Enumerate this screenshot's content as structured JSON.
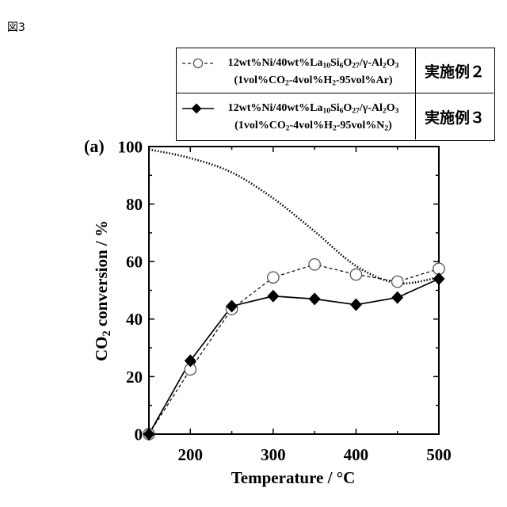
{
  "figure_label": "図3",
  "chart_data": {
    "type": "line",
    "panel_label": "(a)",
    "xlabel": "Temperature / °C",
    "ylabel": [
      {
        "text": "CO"
      },
      {
        "text": "2",
        "sub": true
      },
      {
        "text": " conversion / %"
      }
    ],
    "xlim": [
      150,
      500
    ],
    "ylim": [
      0,
      100
    ],
    "x_ticks": [
      200,
      300,
      400,
      500
    ],
    "y_ticks": [
      0,
      20,
      40,
      60,
      80,
      100
    ],
    "grid": false,
    "legend_placement": "top, above the plot",
    "x": [
      150,
      200,
      250,
      300,
      350,
      400,
      450,
      500
    ],
    "series": [
      {
        "name": "実施例２",
        "label_lines": [
          [
            {
              "text": "12wt%Ni/40wt%La"
            },
            {
              "text": "10",
              "sub": true
            },
            {
              "text": "Si"
            },
            {
              "text": "6",
              "sub": true
            },
            {
              "text": "O"
            },
            {
              "text": "27",
              "sub": true
            },
            {
              "text": "/γ-Al"
            },
            {
              "text": "2",
              "sub": true
            },
            {
              "text": "O"
            },
            {
              "text": "3",
              "sub": true
            }
          ],
          [
            {
              "text": "(1vol%CO"
            },
            {
              "text": "2",
              "sub": true
            },
            {
              "text": "-4vol%H"
            },
            {
              "text": "2",
              "sub": true
            },
            {
              "text": "-95vol%Ar)"
            }
          ]
        ],
        "marker": "open circle",
        "line_style": "dashed",
        "color": "#000000",
        "values": [
          0,
          22.5,
          43.5,
          54.5,
          59,
          55.5,
          53,
          57.5
        ]
      },
      {
        "name": "実施例３",
        "label_lines": [
          [
            {
              "text": "12wt%Ni/40wt%La"
            },
            {
              "text": "10",
              "sub": true
            },
            {
              "text": "Si"
            },
            {
              "text": "6",
              "sub": true
            },
            {
              "text": "O"
            },
            {
              "text": "27",
              "sub": true
            },
            {
              "text": "/γ-Al"
            },
            {
              "text": "2",
              "sub": true
            },
            {
              "text": "O"
            },
            {
              "text": "3",
              "sub": true
            }
          ],
          [
            {
              "text": "(1vol%CO"
            },
            {
              "text": "2",
              "sub": true
            },
            {
              "text": "-4vol%H"
            },
            {
              "text": "2",
              "sub": true
            },
            {
              "text": "-95vol%N"
            },
            {
              "text": "2",
              "sub": true
            },
            {
              "text": ")"
            }
          ]
        ],
        "marker": "filled diamond",
        "line_style": "solid",
        "color": "#000000",
        "values": [
          0,
          25.5,
          44.5,
          48,
          47,
          45,
          47.5,
          54
        ]
      },
      {
        "marker": "none",
        "line_style": "dotted",
        "color": "#000000",
        "values": [
          99,
          96,
          91,
          82,
          70.5,
          58.5,
          52.5,
          54.5
        ]
      }
    ]
  }
}
